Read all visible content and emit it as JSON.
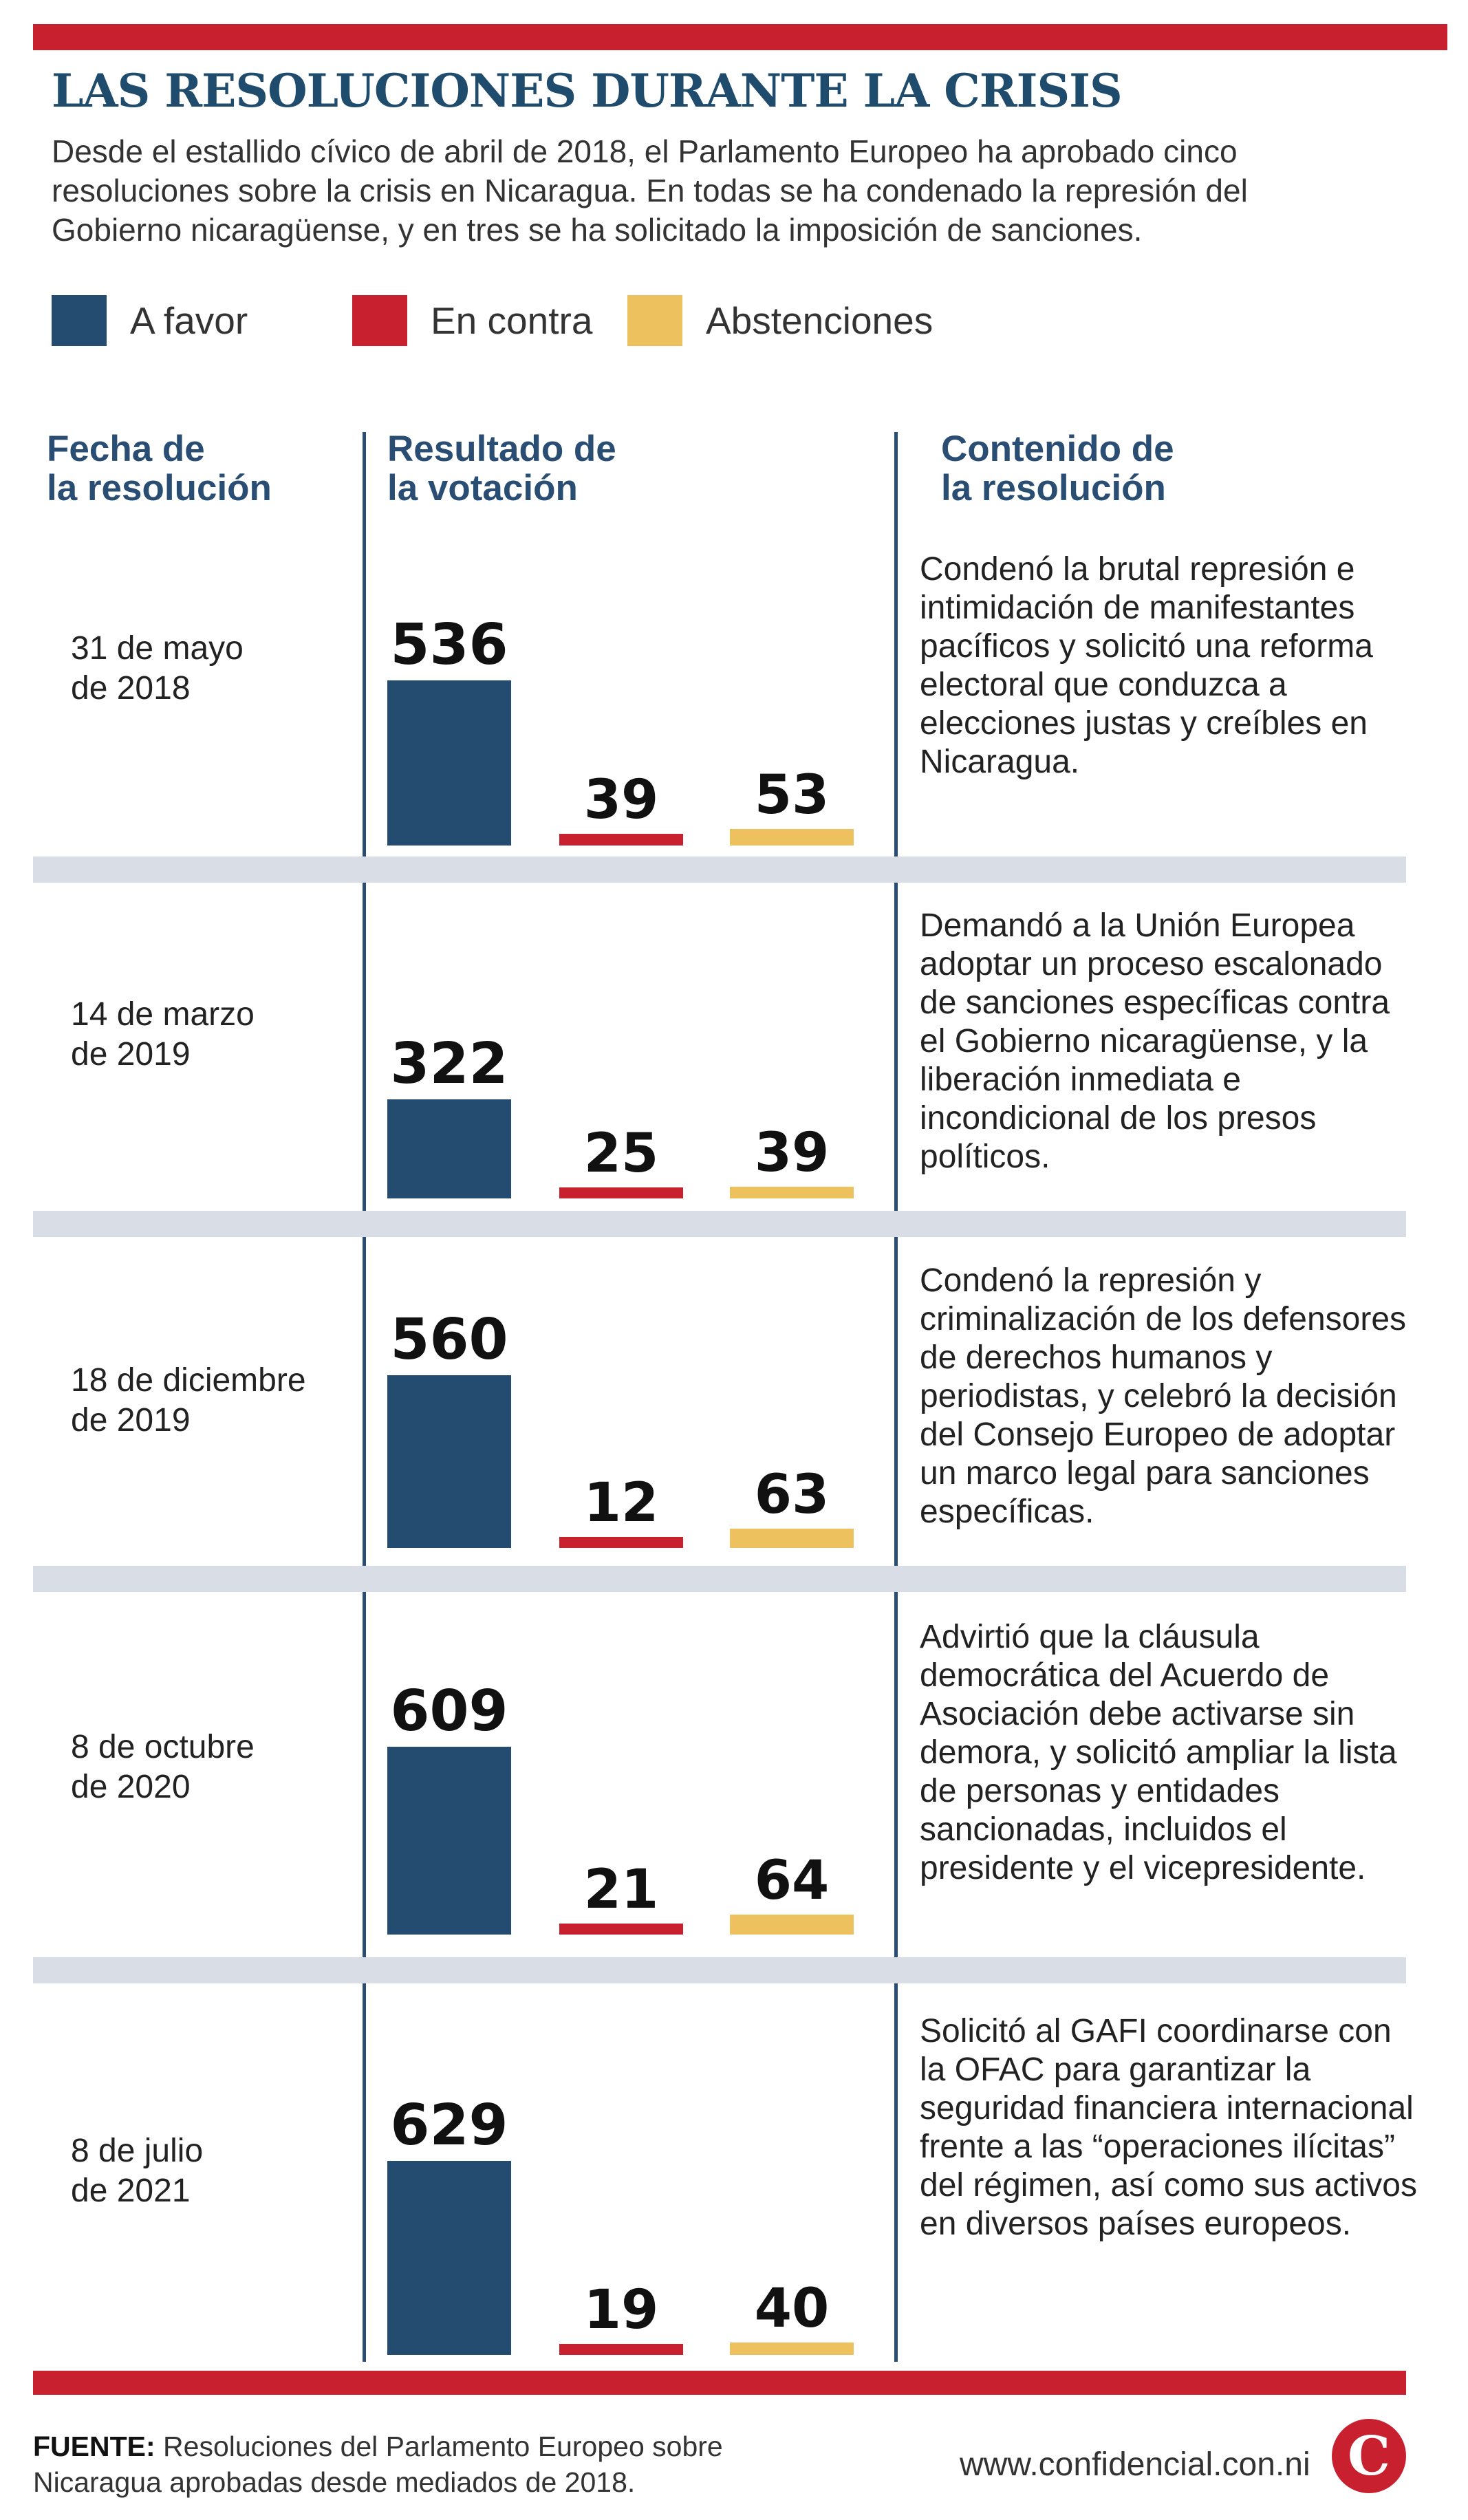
{
  "title": "LAS RESOLUCIONES DURANTE LA CRISIS",
  "subtitle": "Desde el estallido cívico de abril de 2018, el Parlamento Europeo ha aprobado cinco resoluciones sobre la crisis en Nicaragua. En todas se ha condenado la represión del Gobierno nicaragüense, y en tres se ha solicitado la imposición de sanciones.",
  "legend": [
    {
      "label": "A favor",
      "color": "#244c71"
    },
    {
      "label": "En contra",
      "color": "#c8202f"
    },
    {
      "label": "Abstenciones",
      "color": "#ecc15e"
    }
  ],
  "columns": {
    "date": "Fecha de la resolución",
    "date_line1": "Fecha de",
    "date_line2": "la resolución",
    "vote_line1": "Resultado de",
    "vote_line2": "la votación",
    "content_line1": "Contenido de",
    "content_line2": "la resolución"
  },
  "rows": [
    {
      "date_line1": "31 de mayo",
      "date_line2": "de 2018",
      "description": "Condenó la brutal represión e intimidación de manifestantes pacíficos y solicitó una reforma electoral que conduzca a elecciones justas y creíbles en Nicaragua.",
      "favor": "536",
      "contra": "39",
      "abst": "53"
    },
    {
      "date_line1": "14 de marzo",
      "date_line2": "de 2019",
      "description": "Demandó a la Unión Europea adoptar un proceso escalonado de sanciones específicas contra el Gobierno nicaragüense, y la liberación inmediata e incondicional de los presos políticos.",
      "favor": "322",
      "contra": "25",
      "abst": "39"
    },
    {
      "date_line1": "18 de diciembre",
      "date_line2": "de 2019",
      "description": "Condenó la represión y criminalización de los defensores de derechos humanos y periodistas, y celebró la decisión del Consejo Europeo de adoptar un marco legal para sanciones específicas.",
      "favor": "560",
      "contra": "12",
      "abst": "63"
    },
    {
      "date_line1": "8 de octubre",
      "date_line2": "de 2020",
      "description": "Advirtió que la cláusula democrática del Acuerdo de Asociación debe activarse sin demora, y solicitó ampliar la lista de personas y entidades sancionadas, incluidos el presidente y el vicepresidente.",
      "favor": "609",
      "contra": "21",
      "abst": "64"
    },
    {
      "date_line1": "8 de julio",
      "date_line2": "de 2021",
      "description": "Solicitó al GAFI coordinarse con la OFAC para garantizar la seguridad financiera internacional frente a las “operaciones ilícitas” del régimen, así como sus activos en diversos países europeos.",
      "favor": "629",
      "contra": "19",
      "abst": "40"
    }
  ],
  "chart_data": {
    "type": "bar",
    "categories": [
      "31 de mayo de 2018",
      "14 de marzo de 2019",
      "18 de diciembre de 2019",
      "8 de octubre de 2020",
      "8 de julio de 2021"
    ],
    "series": [
      {
        "name": "A favor",
        "values": [
          536,
          322,
          560,
          609,
          629
        ]
      },
      {
        "name": "En contra",
        "values": [
          39,
          25,
          12,
          21,
          19
        ]
      },
      {
        "name": "Abstenciones",
        "values": [
          53,
          39,
          63,
          64,
          40
        ]
      }
    ],
    "title": "LAS RESOLUCIONES DURANTE LA CRISIS",
    "legend_position": "top-left",
    "grid": false
  },
  "source": {
    "label": "FUENTE:",
    "text": " Resoluciones del Parlamento Europeo sobre Nicaragua aprobadas desde mediados de 2018."
  },
  "site": "www.confidencial.con.ni",
  "logo_letter": "C"
}
